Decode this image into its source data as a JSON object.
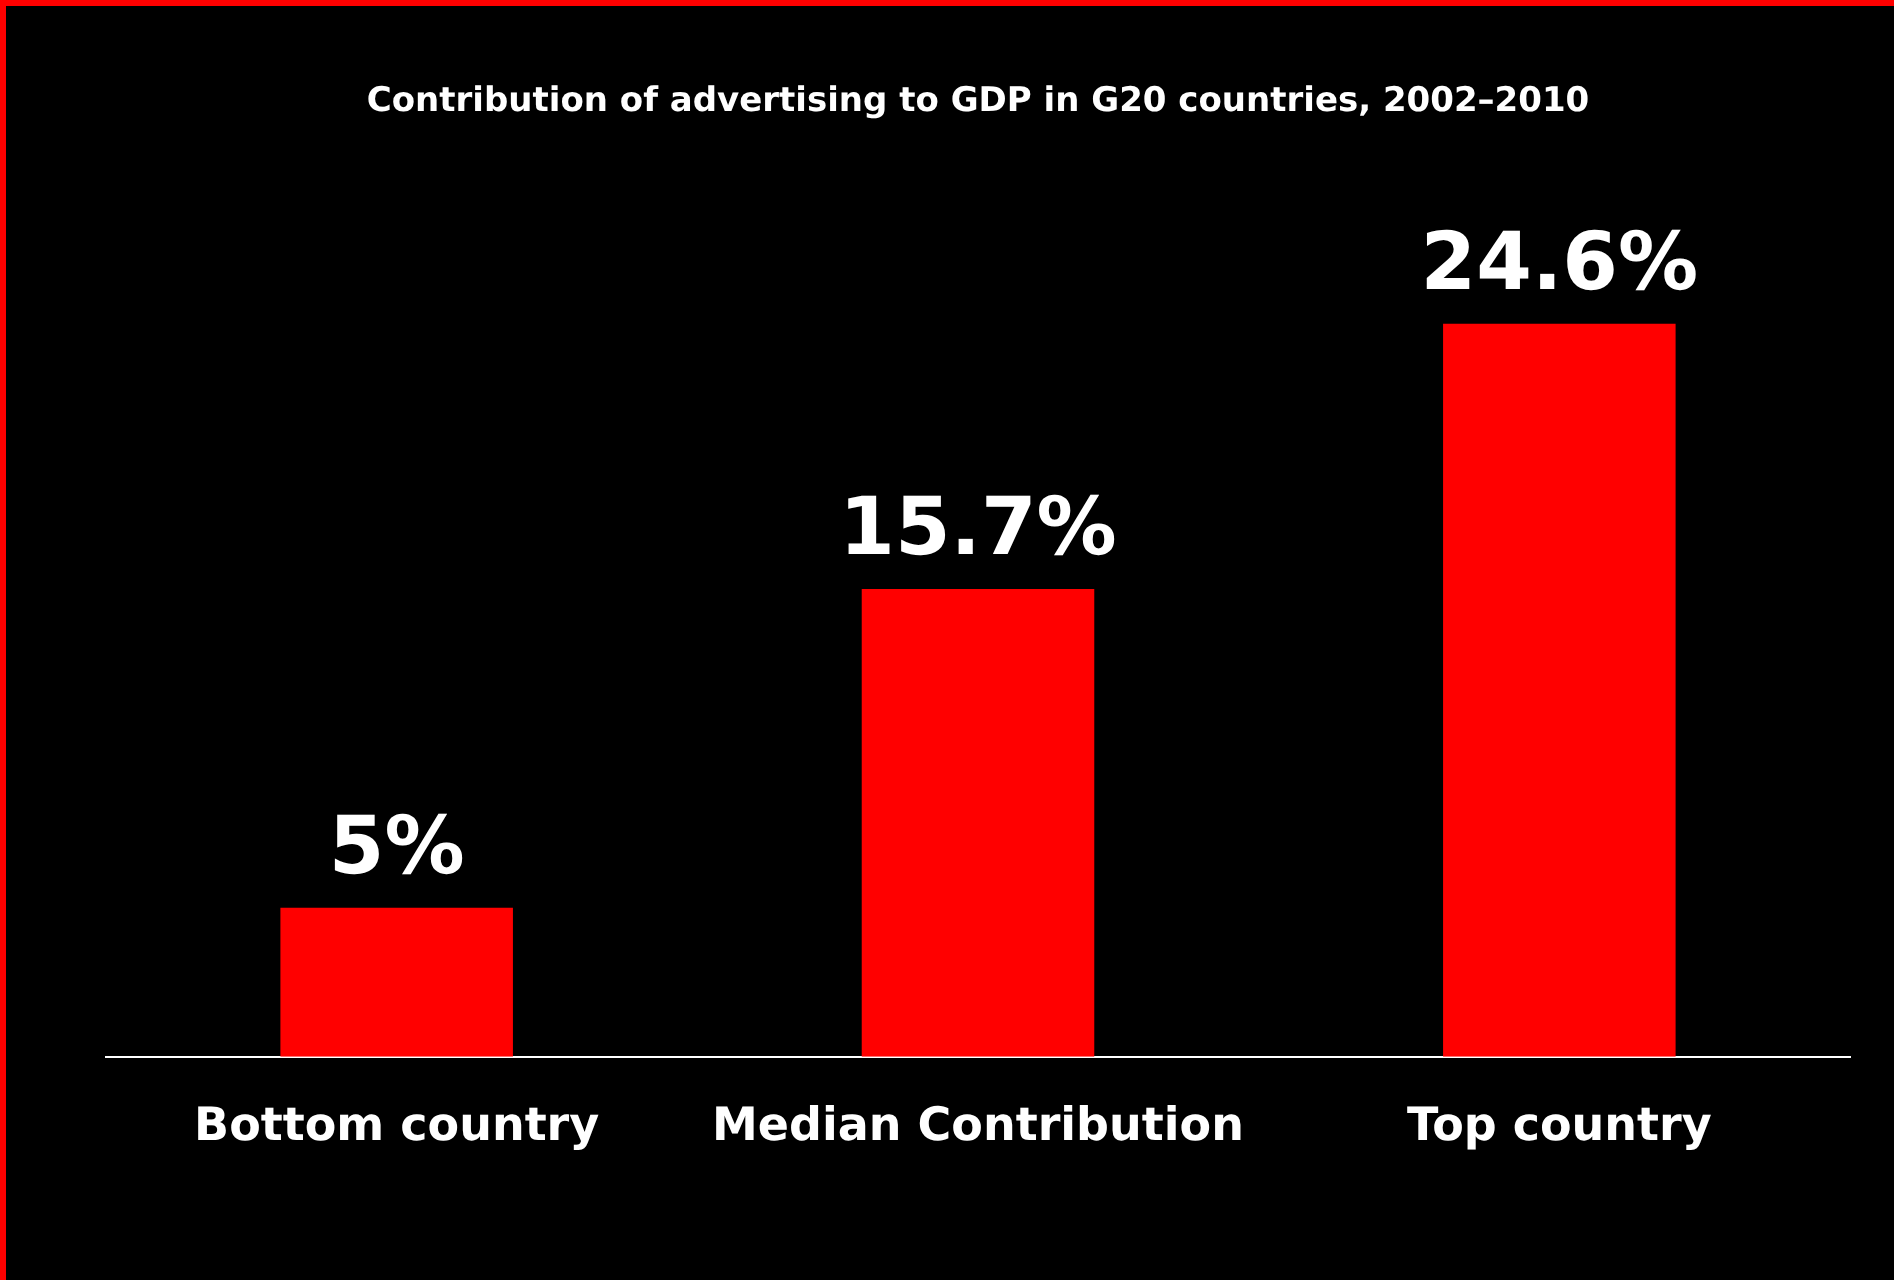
{
  "chart_data": {
    "type": "bar",
    "title": "Contribution of advertising to GDP in G20 countries, 2002–2010",
    "categories": [
      "Bottom country",
      "Median Contribution",
      "Top country"
    ],
    "values": [
      5,
      15.7,
      24.6
    ],
    "value_labels": [
      "5%",
      "15.7%",
      "24.6%"
    ],
    "color": "#ff0000"
  }
}
